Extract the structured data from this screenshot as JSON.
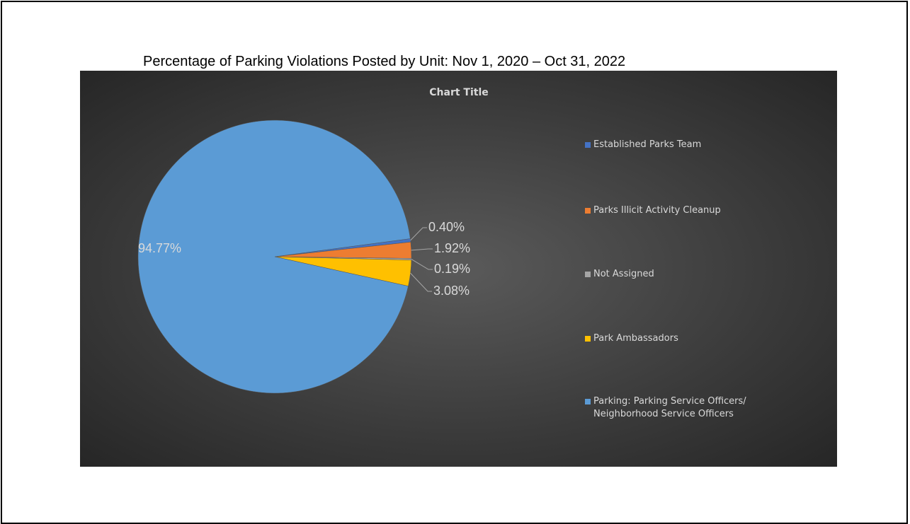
{
  "title": "Percentage of Parking Violations Posted by Unit: Nov 1, 2020 – Oct 31, 2022",
  "chart_data": {
    "type": "pie",
    "title": "Chart Title",
    "categories": [
      "Established Parks Team",
      "Parks Illicit Activity Cleanup",
      "Not Assigned",
      "Park Ambassadors",
      "Parking: Parking Service Officers/ Neighborhood Service Officers"
    ],
    "values": [
      0.4,
      1.92,
      0.19,
      3.08,
      94.77
    ],
    "value_labels": [
      "0.40%",
      "1.92%",
      "0.19%",
      "3.08%",
      "94.77%"
    ],
    "colors": [
      "#4472c4",
      "#ed7d31",
      "#a5a5a5",
      "#ffc000",
      "#5b9bd5"
    ],
    "legend": "right"
  }
}
